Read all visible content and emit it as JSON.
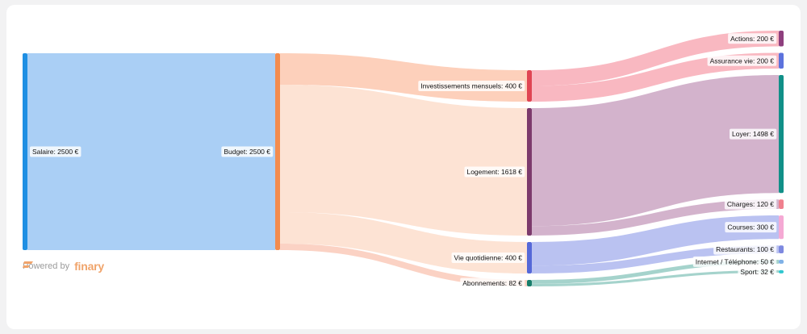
{
  "chart_data": {
    "type": "sankey",
    "unit": "€",
    "nodes": [
      {
        "id": "salaire",
        "label": "Salaire: 2500 €",
        "value": 2500,
        "color": "#1f8fe3"
      },
      {
        "id": "budget",
        "label": "Budget: 2500 €",
        "value": 2500,
        "color": "#f28c4f"
      },
      {
        "id": "invest",
        "label": "Investissements mensuels: 400 €",
        "value": 400,
        "color": "#e04553"
      },
      {
        "id": "logement",
        "label": "Logement: 1618 €",
        "value": 1618,
        "color": "#7c3a6c"
      },
      {
        "id": "vie",
        "label": "Vie quotidienne: 400 €",
        "value": 400,
        "color": "#5568d8"
      },
      {
        "id": "abos",
        "label": "Abonnements: 82 €",
        "value": 82,
        "color": "#177d6a"
      },
      {
        "id": "actions",
        "label": "Actions: 200 €",
        "value": 200,
        "color": "#8e3f7e"
      },
      {
        "id": "assurance",
        "label": "Assurance vie: 200 €",
        "value": 200,
        "color": "#5c72dd"
      },
      {
        "id": "loyer",
        "label": "Loyer: 1498 €",
        "value": 1498,
        "color": "#119088"
      },
      {
        "id": "charges",
        "label": "Charges: 120 €",
        "value": 120,
        "color": "#f0808e"
      },
      {
        "id": "courses",
        "label": "Courses: 300 €",
        "value": 300,
        "color": "#f5a9d4"
      },
      {
        "id": "restaurants",
        "label": "Restaurants: 100 €",
        "value": 100,
        "color": "#7e89e0"
      },
      {
        "id": "internet",
        "label": "Internet / Téléphone: 50 €",
        "value": 50,
        "color": "#7fb1e6"
      },
      {
        "id": "sport",
        "label": "Sport: 32 €",
        "value": 32,
        "color": "#2fc6cf"
      }
    ],
    "links": [
      {
        "source": "salaire",
        "target": "budget",
        "value": 2500,
        "color": "#aacff5"
      },
      {
        "source": "budget",
        "target": "invest",
        "value": 400,
        "color": "#fdd0bb"
      },
      {
        "source": "budget",
        "target": "logement",
        "value": 1618,
        "color": "#fde3d4"
      },
      {
        "source": "budget",
        "target": "vie",
        "value": 400,
        "color": "#fde3d4"
      },
      {
        "source": "budget",
        "target": "abos",
        "value": 82,
        "color": "#fbd2c4"
      },
      {
        "source": "invest",
        "target": "actions",
        "value": 200,
        "color": "#f9b8c1"
      },
      {
        "source": "invest",
        "target": "assurance",
        "value": 200,
        "color": "#f9b8c1"
      },
      {
        "source": "logement",
        "target": "loyer",
        "value": 1498,
        "color": "#d3b3cc"
      },
      {
        "source": "logement",
        "target": "charges",
        "value": 120,
        "color": "#d3b3cc"
      },
      {
        "source": "vie",
        "target": "courses",
        "value": 300,
        "color": "#bac2f1"
      },
      {
        "source": "vie",
        "target": "restaurants",
        "value": 100,
        "color": "#bac2f1"
      },
      {
        "source": "abos",
        "target": "internet",
        "value": 50,
        "color": "#a5d3cc"
      },
      {
        "source": "abos",
        "target": "sport",
        "value": 32,
        "color": "#a5d3cc"
      }
    ]
  },
  "footer": {
    "powered_by": "Powered by",
    "brand_name": "finary",
    "brand_color": "#f0a46b",
    "brand_icon": "finary-logo-icon"
  }
}
